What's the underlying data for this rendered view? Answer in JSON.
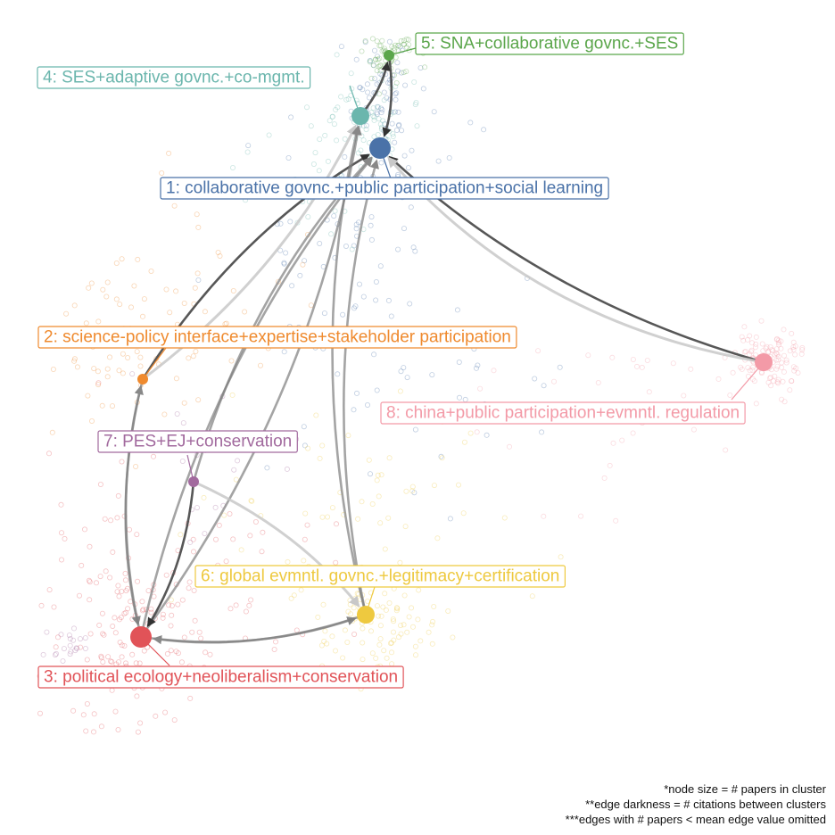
{
  "clusters": [
    {
      "id": 1,
      "label": "1: collaborative govnc.+public participation+social learning",
      "color": "#4a72a8",
      "size": "large"
    },
    {
      "id": 2,
      "label": "2: science-policy interface+expertise+stakeholder participation",
      "color": "#ef8a2e",
      "size": "small"
    },
    {
      "id": 3,
      "label": "3: political ecology+neoliberalism+conservation",
      "color": "#e15358",
      "size": "large"
    },
    {
      "id": 4,
      "label": "4: SES+adaptive govnc.+co-mgmt.",
      "color": "#6bb6ad",
      "size": "medium"
    },
    {
      "id": 5,
      "label": "5: SNA+collaborative govnc.+SES",
      "color": "#5ba64b",
      "size": "small"
    },
    {
      "id": 6,
      "label": "6: global evmntl. govnc.+legitimacy+certification",
      "color": "#eec93f",
      "size": "medium"
    },
    {
      "id": 7,
      "label": "7: PES+EJ+conservation",
      "color": "#a26a9e",
      "size": "small"
    },
    {
      "id": 8,
      "label": "8: china+public participation+evmntl. regulation",
      "color": "#f39aa7",
      "size": "medium"
    }
  ],
  "edges": [
    {
      "from": 8,
      "to": 1,
      "weight": "strong"
    },
    {
      "from": 8,
      "to": 1,
      "weight": "light"
    },
    {
      "from": 5,
      "to": 1,
      "weight": "strong"
    },
    {
      "from": 4,
      "to": 5,
      "weight": "strong"
    },
    {
      "from": 2,
      "to": 1,
      "weight": "strong"
    },
    {
      "from": 2,
      "to": 4,
      "weight": "light"
    },
    {
      "from": 3,
      "to": 1,
      "weight": "medium"
    },
    {
      "from": 3,
      "to": 4,
      "weight": "medium"
    },
    {
      "from": 6,
      "to": 1,
      "weight": "medium"
    },
    {
      "from": 6,
      "to": 4,
      "weight": "medium"
    },
    {
      "from": 7,
      "to": 1,
      "weight": "medium"
    },
    {
      "from": 7,
      "to": 3,
      "weight": "strong"
    },
    {
      "from": 7,
      "to": 6,
      "weight": "light"
    },
    {
      "from": 2,
      "to": 3,
      "weight": "medium"
    },
    {
      "from": 3,
      "to": 2,
      "weight": "medium"
    },
    {
      "from": 3,
      "to": 6,
      "weight": "medium"
    },
    {
      "from": 6,
      "to": 3,
      "weight": "medium"
    }
  ],
  "footnotes": {
    "line1": "*node size = # papers in cluster",
    "line2": "**edge darkness = # citations between clusters",
    "line3": "***edges with # papers < mean edge value omitted"
  }
}
